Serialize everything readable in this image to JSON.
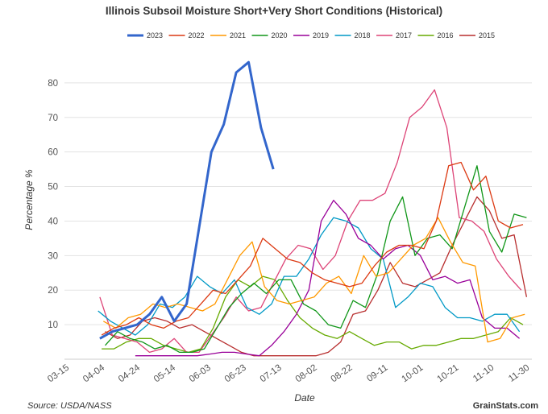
{
  "footer": {
    "source": "Source: USDA/NASS",
    "brand": "GrainStats.com"
  },
  "chart_data": {
    "type": "line",
    "title": "Illinois Subsoil Moisture Short+Very Short Conditions (Historical)",
    "xlabel": "Date",
    "ylabel": "Percentage %",
    "ylim": [
      0,
      90
    ],
    "yticks": [
      10,
      20,
      30,
      40,
      50,
      60,
      70,
      80
    ],
    "grid": true,
    "legend_position": "top",
    "x_tick_labels": [
      "03-15",
      "04-04",
      "04-24",
      "05-14",
      "06-03",
      "06-23",
      "07-13",
      "08-02",
      "08-22",
      "09-11",
      "10-01",
      "10-21",
      "11-10",
      "11-30"
    ],
    "x_tick_days": [
      0,
      20,
      40,
      60,
      80,
      100,
      120,
      140,
      160,
      180,
      200,
      220,
      240,
      260
    ],
    "series": [
      {
        "name": "2023",
        "color": "#3366cc",
        "width": 3,
        "x": [
          "04-02",
          "04-09",
          "04-16",
          "04-23",
          "04-30",
          "05-07",
          "05-14",
          "05-21",
          "05-28",
          "06-04",
          "06-11",
          "06-18",
          "06-25",
          "07-02",
          "07-09"
        ],
        "y": [
          6,
          8,
          9,
          10,
          13,
          18,
          11,
          16,
          38,
          60,
          68,
          83,
          86,
          67,
          55
        ]
      },
      {
        "name": "2022",
        "color": "#dc3912",
        "width": 1.3,
        "x": [
          "04-03",
          "04-10",
          "04-17",
          "04-24",
          "05-01",
          "05-08",
          "05-15",
          "05-22",
          "05-29",
          "06-05",
          "06-12",
          "06-19",
          "06-26",
          "07-03",
          "07-10",
          "07-17",
          "07-24",
          "07-31",
          "08-07",
          "08-14",
          "08-21",
          "08-28",
          "09-04",
          "09-11",
          "09-18",
          "09-25",
          "10-02",
          "10-09",
          "10-16",
          "10-23",
          "10-30",
          "11-06",
          "11-13",
          "11-20",
          "11-27"
        ],
        "y": [
          7,
          9,
          10,
          12,
          10,
          9,
          11,
          12,
          16,
          20,
          19,
          23,
          27,
          35,
          32,
          29,
          28,
          25,
          23,
          22,
          21,
          22,
          27,
          31,
          33,
          33,
          32,
          40,
          56,
          57,
          49,
          53,
          40,
          38,
          39
        ]
      },
      {
        "name": "2021",
        "color": "#ff9900",
        "width": 1.3,
        "x": [
          "04-04",
          "04-11",
          "04-18",
          "04-25",
          "05-02",
          "05-09",
          "05-16",
          "05-23",
          "05-30",
          "06-06",
          "06-13",
          "06-20",
          "06-27",
          "07-04",
          "07-11",
          "07-18",
          "07-25",
          "08-01",
          "08-08",
          "08-15",
          "08-22",
          "08-29",
          "09-05",
          "09-12",
          "09-19",
          "09-26",
          "10-03",
          "10-10",
          "10-17",
          "10-24",
          "10-31",
          "11-07",
          "11-14",
          "11-21",
          "11-28"
        ],
        "y": [
          11,
          9,
          12,
          13,
          16,
          15,
          16,
          15,
          14,
          16,
          23,
          30,
          34,
          21,
          17,
          16,
          17,
          18,
          22,
          24,
          19,
          30,
          24,
          25,
          29,
          33,
          35,
          41,
          34,
          28,
          27,
          5,
          6,
          12,
          13
        ]
      },
      {
        "name": "2020",
        "color": "#109618",
        "width": 1.3,
        "x": [
          "04-05",
          "04-12",
          "04-19",
          "04-26",
          "05-03",
          "05-10",
          "05-17",
          "05-24",
          "05-31",
          "06-07",
          "06-14",
          "06-21",
          "06-28",
          "07-05",
          "07-12",
          "07-19",
          "07-26",
          "08-02",
          "08-09",
          "08-16",
          "08-23",
          "08-30",
          "09-06",
          "09-13",
          "09-20",
          "09-27",
          "10-04",
          "10-11",
          "10-18",
          "10-25",
          "11-01",
          "11-08",
          "11-15",
          "11-22",
          "11-29"
        ],
        "y": [
          4,
          8,
          6,
          5,
          3,
          4,
          2,
          2,
          3,
          9,
          15,
          19,
          22,
          19,
          23,
          23,
          16,
          14,
          10,
          9,
          17,
          15,
          25,
          40,
          47,
          30,
          35,
          36,
          32,
          44,
          56,
          37,
          31,
          42,
          41
        ]
      },
      {
        "name": "2019",
        "color": "#990099",
        "width": 1.3,
        "x": [
          "04-22",
          "04-29",
          "05-06",
          "05-13",
          "05-20",
          "05-27",
          "06-03",
          "06-10",
          "06-17",
          "06-24",
          "07-01",
          "07-08",
          "07-15",
          "07-22",
          "07-29",
          "08-05",
          "08-12",
          "08-19",
          "08-26",
          "09-02",
          "09-09",
          "09-16",
          "09-23",
          "09-30",
          "10-07",
          "10-14",
          "10-21",
          "10-28",
          "11-04",
          "11-11",
          "11-18",
          "11-25"
        ],
        "y": [
          1,
          1,
          1,
          1,
          1,
          1,
          1.5,
          2,
          2,
          1.5,
          1,
          4,
          8,
          13,
          20,
          40,
          46,
          42,
          35,
          33,
          29,
          32,
          33,
          30,
          23,
          24,
          22,
          23,
          12,
          9,
          9,
          6
        ]
      },
      {
        "name": "2018",
        "color": "#0099c6",
        "width": 1.3,
        "x": [
          "04-01",
          "04-08",
          "04-15",
          "04-22",
          "04-29",
          "05-06",
          "05-13",
          "05-20",
          "05-27",
          "06-03",
          "06-10",
          "06-17",
          "06-24",
          "07-01",
          "07-08",
          "07-15",
          "07-22",
          "07-29",
          "08-05",
          "08-12",
          "08-19",
          "08-26",
          "09-02",
          "09-09",
          "09-16",
          "09-23",
          "09-30",
          "10-07",
          "10-14",
          "10-21",
          "10-28",
          "11-04",
          "11-11",
          "11-18",
          "11-25"
        ],
        "y": [
          14,
          11,
          9,
          7,
          10,
          16,
          15,
          18,
          24,
          21,
          19,
          23,
          15,
          13,
          16,
          24,
          24,
          29,
          36,
          41,
          40,
          38,
          32,
          29,
          15,
          18,
          22,
          21,
          15,
          12,
          12,
          11,
          13,
          13,
          8
        ]
      },
      {
        "name": "2017",
        "color": "#dd4477",
        "width": 1.3,
        "x": [
          "04-02",
          "04-09",
          "04-16",
          "04-23",
          "04-30",
          "05-07",
          "05-14",
          "05-21",
          "05-28",
          "06-04",
          "06-11",
          "06-18",
          "06-25",
          "07-02",
          "07-09",
          "07-16",
          "07-23",
          "07-30",
          "08-06",
          "08-13",
          "08-20",
          "08-27",
          "09-03",
          "09-10",
          "09-17",
          "09-24",
          "10-01",
          "10-08",
          "10-15",
          "10-22",
          "10-29",
          "11-05",
          "11-12",
          "11-19",
          "11-26"
        ],
        "y": [
          18,
          7,
          6,
          5,
          2,
          3,
          6,
          2,
          2,
          7,
          12,
          18,
          14,
          15,
          22,
          29,
          33,
          32,
          26,
          30,
          40,
          46,
          46,
          48,
          57,
          70,
          73,
          78,
          67,
          41,
          40,
          37,
          29,
          24,
          20
        ]
      },
      {
        "name": "2016",
        "color": "#66aa00",
        "width": 1.3,
        "x": [
          "04-03",
          "04-10",
          "04-17",
          "04-24",
          "05-01",
          "05-08",
          "05-15",
          "05-22",
          "05-29",
          "06-05",
          "06-12",
          "06-19",
          "06-26",
          "07-03",
          "07-10",
          "07-17",
          "07-24",
          "07-31",
          "08-07",
          "08-14",
          "08-21",
          "08-28",
          "09-04",
          "09-11",
          "09-18",
          "09-25",
          "10-02",
          "10-09",
          "10-16",
          "10-23",
          "10-30",
          "11-06",
          "11-13",
          "11-20",
          "11-27"
        ],
        "y": [
          3,
          3,
          5,
          6,
          6,
          4,
          3,
          2,
          3,
          9,
          18,
          23,
          21,
          24,
          23,
          17,
          12,
          9,
          7,
          6,
          8,
          6,
          4,
          5,
          5,
          3,
          4,
          4,
          5,
          6,
          6,
          7,
          8,
          12,
          10
        ]
      },
      {
        "name": "2015",
        "color": "#b82e2e",
        "width": 1.3,
        "x": [
          "04-05",
          "04-12",
          "04-19",
          "04-26",
          "05-03",
          "05-10",
          "05-17",
          "05-24",
          "05-31",
          "06-07",
          "06-14",
          "06-21",
          "06-28",
          "07-05",
          "07-12",
          "07-19",
          "07-26",
          "08-02",
          "08-09",
          "08-16",
          "08-23",
          "08-30",
          "09-06",
          "09-13",
          "09-20",
          "09-27",
          "10-04",
          "10-11",
          "10-18",
          "10-25",
          "11-01",
          "11-08",
          "11-15",
          "11-22",
          "11-29"
        ],
        "y": [
          8,
          6,
          7,
          11,
          12,
          11,
          9,
          10,
          8,
          6,
          4,
          2,
          1,
          1,
          1,
          1,
          1,
          1,
          2,
          5,
          13,
          14,
          20,
          28,
          22,
          21,
          23,
          25,
          33,
          40,
          47,
          43,
          35,
          36,
          18
        ]
      }
    ]
  }
}
